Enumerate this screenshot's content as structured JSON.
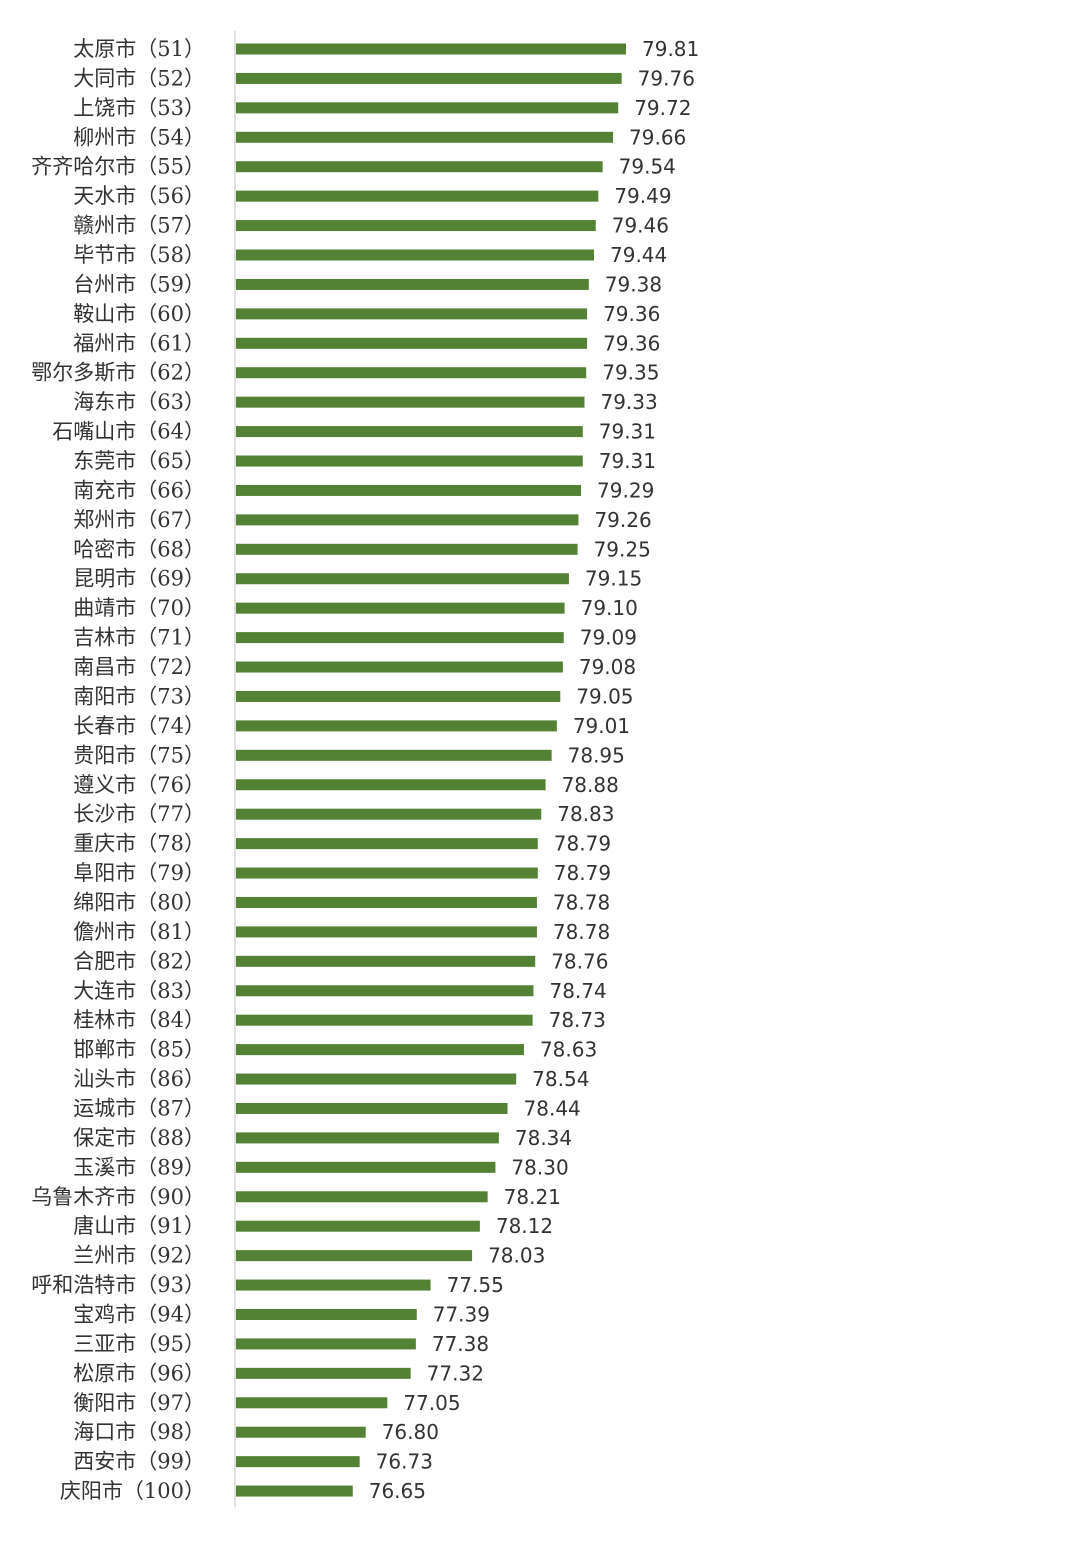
{
  "chart_data": {
    "type": "bar",
    "orientation": "horizontal",
    "categories": [
      "太原市（51）",
      "大同市（52）",
      "上饶市（53）",
      "柳州市（54）",
      "齐齐哈尔市（55）",
      "天水市（56）",
      "赣州市（57）",
      "毕节市（58）",
      "台州市（59）",
      "鞍山市（60）",
      "福州市（61）",
      "鄂尔多斯市（62）",
      "海东市（63）",
      "石嘴山市（64）",
      "东莞市（65）",
      "南充市（66）",
      "郑州市（67）",
      "哈密市（68）",
      "昆明市（69）",
      "曲靖市（70）",
      "吉林市（71）",
      "南昌市（72）",
      "南阳市（73）",
      "长春市（74）",
      "贵阳市（75）",
      "遵义市（76）",
      "长沙市（77）",
      "重庆市（78）",
      "阜阳市（79）",
      "绵阳市（80）",
      "儋州市（81）",
      "合肥市（82）",
      "大连市（83）",
      "桂林市（84）",
      "邯郸市（85）",
      "汕头市（86）",
      "运城市（87）",
      "保定市（88）",
      "玉溪市（89）",
      "乌鲁木齐市（90）",
      "唐山市（91）",
      "兰州市（92）",
      "呼和浩特市（93）",
      "宝鸡市（94）",
      "三亚市（95）",
      "松原市（96）",
      "衡阳市（97）",
      "海口市（98）",
      "西安市（99）",
      "庆阳市（100）"
    ],
    "values": [
      79.81,
      79.76,
      79.72,
      79.66,
      79.54,
      79.49,
      79.46,
      79.44,
      79.38,
      79.36,
      79.36,
      79.35,
      79.33,
      79.31,
      79.31,
      79.29,
      79.26,
      79.25,
      79.15,
      79.1,
      79.09,
      79.08,
      79.05,
      79.01,
      78.95,
      78.88,
      78.83,
      78.79,
      78.79,
      78.78,
      78.78,
      78.76,
      78.74,
      78.73,
      78.63,
      78.54,
      78.44,
      78.34,
      78.3,
      78.21,
      78.12,
      78.03,
      77.55,
      77.39,
      77.38,
      77.32,
      77.05,
      76.8,
      76.73,
      76.65
    ],
    "value_labels": [
      "79.81",
      "79.76",
      "79.72",
      "79.66",
      "79.54",
      "79.49",
      "79.46",
      "79.44",
      "79.38",
      "79.36",
      "79.36",
      "79.35",
      "79.33",
      "79.31",
      "79.31",
      "79.29",
      "79.26",
      "79.25",
      "79.15",
      "79.10",
      "79.09",
      "79.08",
      "79.05",
      "79.01",
      "78.95",
      "78.88",
      "78.83",
      "78.79",
      "78.79",
      "78.78",
      "78.78",
      "78.76",
      "78.74",
      "78.73",
      "78.63",
      "78.54",
      "78.44",
      "78.34",
      "78.30",
      "78.21",
      "78.12",
      "78.03",
      "77.55",
      "77.39",
      "77.38",
      "77.32",
      "77.05",
      "76.80",
      "76.73",
      "76.65"
    ],
    "xlim": [
      75.3,
      79.81
    ],
    "bar_color": "#548235",
    "axis_color": "#d9d9d9",
    "grid": false,
    "legend": "none",
    "title": ""
  }
}
